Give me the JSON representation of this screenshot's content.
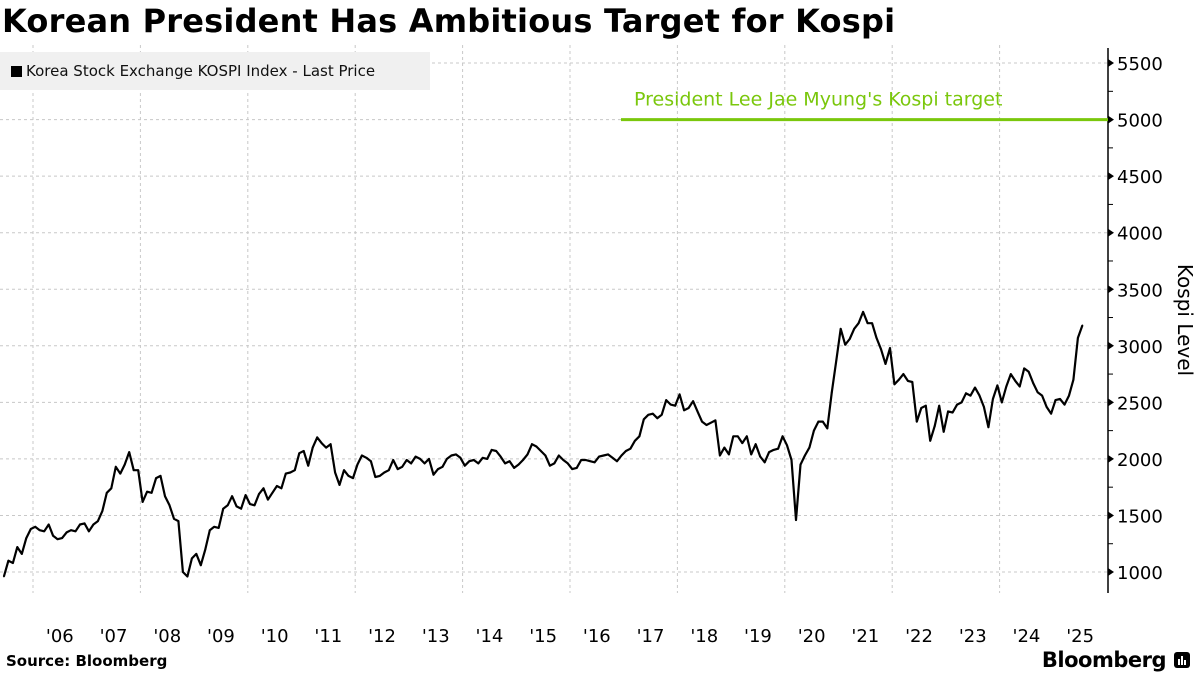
{
  "title": "Korean President Has Ambitious Target for Kospi",
  "source": "Source: Bloomberg",
  "logo": "Bloomberg",
  "chart_data": {
    "type": "line",
    "title": "Korean President Has Ambitious Target for Kospi",
    "ylabel": "Kospi Level",
    "xlabel": "",
    "ylim": [
      850,
      5600
    ],
    "xlim": [
      "2005-05",
      "2026-01"
    ],
    "yticks": [
      1000,
      1500,
      2000,
      2500,
      3000,
      3500,
      4000,
      4500,
      5000,
      5500
    ],
    "xtick_labels": [
      "'06",
      "'07",
      "'08",
      "'09",
      "'10",
      "'11",
      "'12",
      "'13",
      "'14",
      "'15",
      "'16",
      "'17",
      "'18",
      "'19",
      "'20",
      "'21",
      "'22",
      "'23",
      "'24",
      "'25"
    ],
    "grid": true,
    "legend_position": "top-left",
    "series": [
      {
        "name": "Korea Stock Exchange KOSPI Index - Last Price",
        "color": "#000000",
        "dates": [
          "2005-06",
          "2005-07",
          "2005-08",
          "2005-09",
          "2005-10",
          "2005-11",
          "2005-12",
          "2006-01",
          "2006-02",
          "2006-03",
          "2006-04",
          "2006-05",
          "2006-06",
          "2006-07",
          "2006-08",
          "2006-09",
          "2006-10",
          "2006-11",
          "2006-12",
          "2007-01",
          "2007-02",
          "2007-03",
          "2007-04",
          "2007-05",
          "2007-06",
          "2007-07",
          "2007-08",
          "2007-09",
          "2007-10",
          "2007-11",
          "2007-12",
          "2008-01",
          "2008-02",
          "2008-03",
          "2008-04",
          "2008-05",
          "2008-06",
          "2008-07",
          "2008-08",
          "2008-09",
          "2008-10",
          "2008-11",
          "2008-12",
          "2009-01",
          "2009-02",
          "2009-03",
          "2009-04",
          "2009-05",
          "2009-06",
          "2009-07",
          "2009-08",
          "2009-09",
          "2009-10",
          "2009-11",
          "2009-12",
          "2010-01",
          "2010-02",
          "2010-03",
          "2010-04",
          "2010-05",
          "2010-06",
          "2010-07",
          "2010-08",
          "2010-09",
          "2010-10",
          "2010-11",
          "2010-12",
          "2011-01",
          "2011-02",
          "2011-03",
          "2011-04",
          "2011-05",
          "2011-06",
          "2011-07",
          "2011-08",
          "2011-09",
          "2011-10",
          "2011-11",
          "2011-12",
          "2012-01",
          "2012-02",
          "2012-03",
          "2012-04",
          "2012-05",
          "2012-06",
          "2012-07",
          "2012-08",
          "2012-09",
          "2012-10",
          "2012-11",
          "2012-12",
          "2013-01",
          "2013-02",
          "2013-03",
          "2013-04",
          "2013-05",
          "2013-06",
          "2013-07",
          "2013-08",
          "2013-09",
          "2013-10",
          "2013-11",
          "2013-12",
          "2014-01",
          "2014-02",
          "2014-03",
          "2014-04",
          "2014-05",
          "2014-06",
          "2014-07",
          "2014-08",
          "2014-09",
          "2014-10",
          "2014-11",
          "2014-12",
          "2015-01",
          "2015-02",
          "2015-03",
          "2015-04",
          "2015-05",
          "2015-06",
          "2015-07",
          "2015-08",
          "2015-09",
          "2015-10",
          "2015-11",
          "2015-12",
          "2016-01",
          "2016-02",
          "2016-03",
          "2016-04",
          "2016-05",
          "2016-06",
          "2016-07",
          "2016-08",
          "2016-09",
          "2016-10",
          "2016-11",
          "2016-12",
          "2017-01",
          "2017-02",
          "2017-03",
          "2017-04",
          "2017-05",
          "2017-06",
          "2017-07",
          "2017-08",
          "2017-09",
          "2017-10",
          "2017-11",
          "2017-12",
          "2018-01",
          "2018-02",
          "2018-03",
          "2018-04",
          "2018-05",
          "2018-06",
          "2018-07",
          "2018-08",
          "2018-09",
          "2018-10",
          "2018-11",
          "2018-12",
          "2019-01",
          "2019-02",
          "2019-03",
          "2019-04",
          "2019-05",
          "2019-06",
          "2019-07",
          "2019-08",
          "2019-09",
          "2019-10",
          "2019-11",
          "2019-12",
          "2020-01",
          "2020-02",
          "2020-03",
          "2020-04",
          "2020-05",
          "2020-06",
          "2020-07",
          "2020-08",
          "2020-09",
          "2020-10",
          "2020-11",
          "2020-12",
          "2021-01",
          "2021-02",
          "2021-03",
          "2021-04",
          "2021-05",
          "2021-06",
          "2021-07",
          "2021-08",
          "2021-09",
          "2021-10",
          "2021-11",
          "2021-12",
          "2022-01",
          "2022-02",
          "2022-03",
          "2022-04",
          "2022-05",
          "2022-06",
          "2022-07",
          "2022-08",
          "2022-09",
          "2022-10",
          "2022-11",
          "2022-12",
          "2023-01",
          "2023-02",
          "2023-03",
          "2023-04",
          "2023-05",
          "2023-06",
          "2023-07",
          "2023-08",
          "2023-09",
          "2023-10",
          "2023-11",
          "2023-12",
          "2024-01",
          "2024-02",
          "2024-03",
          "2024-04",
          "2024-05",
          "2024-06",
          "2024-07",
          "2024-08",
          "2024-09",
          "2024-10",
          "2024-11",
          "2024-12",
          "2025-01",
          "2025-02",
          "2025-03",
          "2025-04",
          "2025-05",
          "2025-06",
          "2025-07"
        ],
        "values": [
          960,
          1100,
          1080,
          1220,
          1160,
          1300,
          1380,
          1400,
          1370,
          1360,
          1420,
          1320,
          1290,
          1300,
          1350,
          1370,
          1360,
          1420,
          1430,
          1360,
          1420,
          1450,
          1540,
          1700,
          1740,
          1930,
          1870,
          1950,
          2060,
          1900,
          1900,
          1620,
          1710,
          1700,
          1830,
          1850,
          1670,
          1590,
          1470,
          1450,
          1000,
          960,
          1120,
          1160,
          1060,
          1200,
          1370,
          1400,
          1390,
          1560,
          1590,
          1670,
          1580,
          1560,
          1680,
          1600,
          1590,
          1690,
          1740,
          1640,
          1700,
          1760,
          1740,
          1870,
          1880,
          1900,
          2050,
          2070,
          1940,
          2100,
          2190,
          2140,
          2100,
          2130,
          1880,
          1770,
          1900,
          1850,
          1830,
          1950,
          2030,
          2010,
          1980,
          1840,
          1850,
          1880,
          1900,
          1990,
          1910,
          1930,
          1990,
          1960,
          2020,
          2000,
          1960,
          2000,
          1860,
          1910,
          1930,
          2000,
          2030,
          2040,
          2010,
          1940,
          1980,
          1990,
          1960,
          2010,
          2000,
          2080,
          2070,
          2020,
          1960,
          1980,
          1920,
          1950,
          1990,
          2040,
          2130,
          2110,
          2070,
          2030,
          1940,
          1960,
          2030,
          1990,
          1960,
          1910,
          1920,
          1990,
          1990,
          1980,
          1970,
          2020,
          2030,
          2040,
          2010,
          1980,
          2030,
          2070,
          2090,
          2160,
          2200,
          2350,
          2390,
          2400,
          2360,
          2390,
          2520,
          2480,
          2470,
          2570,
          2430,
          2450,
          2510,
          2420,
          2330,
          2300,
          2320,
          2340,
          2030,
          2100,
          2040,
          2200,
          2200,
          2140,
          2200,
          2040,
          2130,
          2020,
          1970,
          2060,
          2080,
          2090,
          2200,
          2120,
          1990,
          1460,
          1950,
          2030,
          2100,
          2250,
          2330,
          2330,
          2270,
          2590,
          2870,
          3150,
          3010,
          3060,
          3150,
          3200,
          3300,
          3200,
          3200,
          3070,
          2970,
          2840,
          2980,
          2660,
          2700,
          2750,
          2690,
          2680,
          2330,
          2450,
          2470,
          2160,
          2290,
          2470,
          2240,
          2420,
          2410,
          2480,
          2500,
          2580,
          2560,
          2630,
          2560,
          2460,
          2280,
          2530,
          2650,
          2500,
          2640,
          2750,
          2690,
          2640,
          2800,
          2770,
          2670,
          2590,
          2560,
          2460,
          2400,
          2520,
          2530,
          2480,
          2560,
          2700,
          3070,
          3180
        ]
      }
    ],
    "annotations": [
      {
        "text": "President Lee Jae Myung's Kospi target",
        "value": 5000,
        "color": "#7ac70c"
      }
    ]
  }
}
